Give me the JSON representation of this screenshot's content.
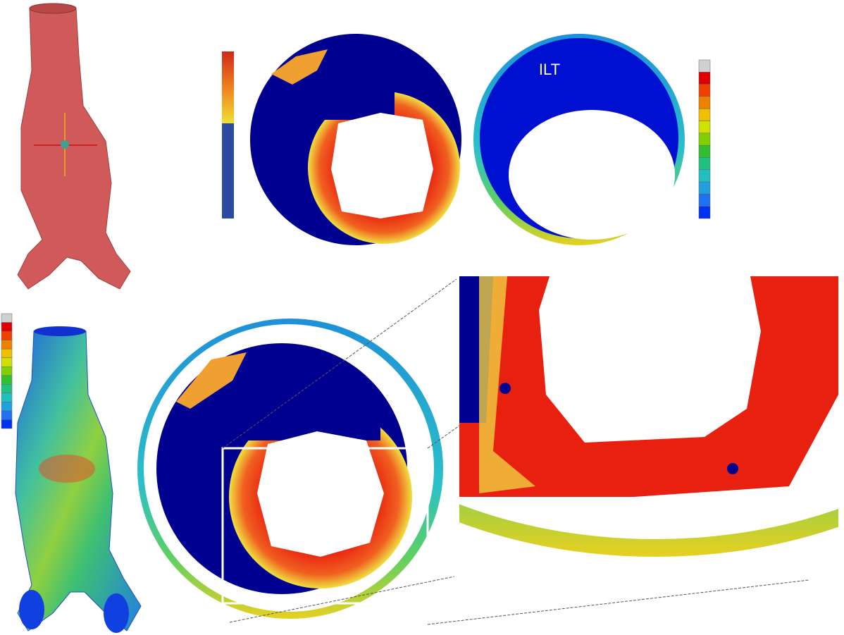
{
  "annotation": "ILT"
}
